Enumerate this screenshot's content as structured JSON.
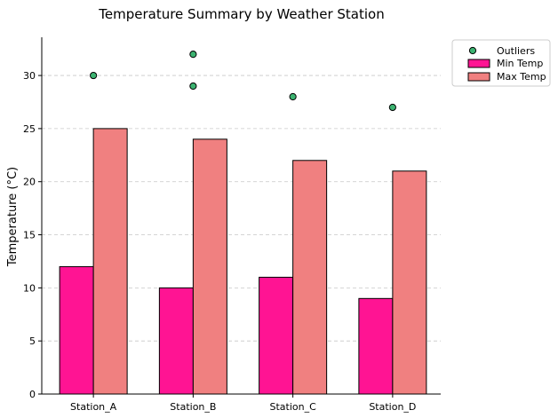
{
  "chart_data": {
    "type": "bar",
    "title": "Temperature Summary by Weather Station",
    "xlabel": "",
    "ylabel": "Temperature (°C)",
    "categories": [
      "Station_A",
      "Station_B",
      "Station_C",
      "Station_D"
    ],
    "series": [
      {
        "name": "Min Temp",
        "values": [
          12,
          10,
          11,
          9
        ],
        "color": "#ff1493"
      },
      {
        "name": "Max Temp",
        "values": [
          25,
          24,
          22,
          21
        ],
        "color": "#f08080"
      }
    ],
    "outliers": {
      "name": "Outliers",
      "color": "#3cb371",
      "points": [
        {
          "category": "Station_A",
          "value": 30
        },
        {
          "category": "Station_B",
          "value": 32
        },
        {
          "category": "Station_B",
          "value": 29
        },
        {
          "category": "Station_C",
          "value": 28
        },
        {
          "category": "Station_D",
          "value": 27
        }
      ]
    },
    "ylim": [
      0,
      33.6
    ],
    "yticks": [
      0,
      5,
      10,
      15,
      20,
      25,
      30
    ],
    "grid": "y-dashed",
    "legend_position": "upper right outside"
  }
}
